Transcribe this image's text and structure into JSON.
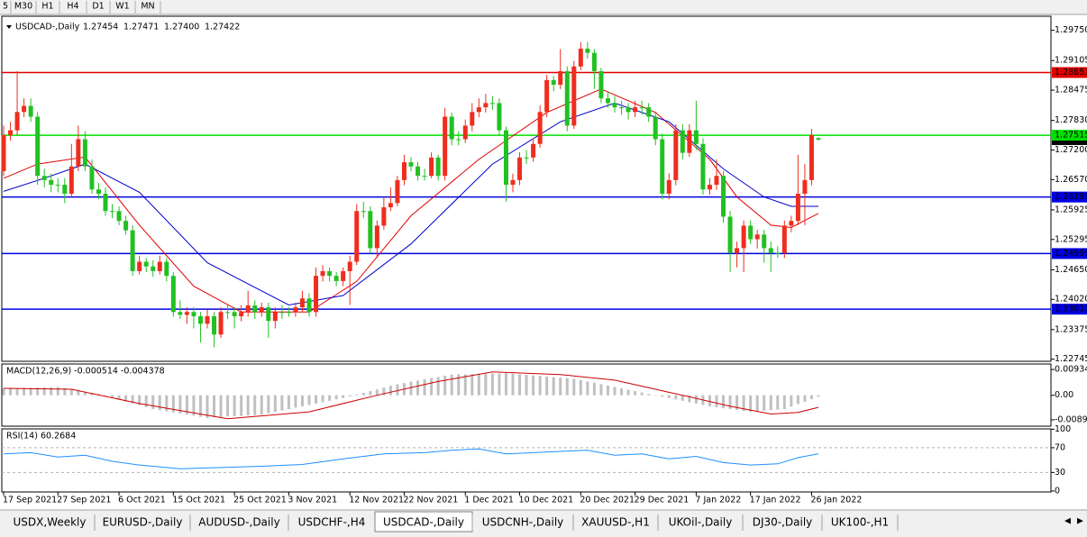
{
  "toolbar": {
    "timeframes": [
      "5",
      "M30",
      "H1",
      "H4",
      "D1",
      "W1",
      "MN"
    ]
  },
  "tabs": {
    "items": [
      "USDX,Weekly",
      "EURUSD-,Daily",
      "AUDUSD-,Daily",
      "USDCHF-,H4",
      "USDCAD-,Daily",
      "USDCNH-,Daily",
      "XAUUSD-,H1",
      "UKOil-,Daily",
      "DJ30-,Daily",
      "UK100-,H1"
    ],
    "active": 4
  },
  "chart_data": {
    "type": "candlestick",
    "title": "USDCAD-,Daily",
    "legend_ohlc": [
      "1.27454",
      "1.27471",
      "1.27400",
      "1.27422"
    ],
    "up_color": "#ef2d1e",
    "down_color": "#22c022",
    "ylim": [
      1.227,
      1.3005
    ],
    "yticks": [
      {
        "value": 1.2975,
        "label": "1.29750"
      },
      1.29105,
      1.28475,
      {
        "value": 1.2783,
        "label": "1.27830"
      },
      {
        "value": 1.272,
        "label": "1.27200"
      },
      {
        "value": 1.2657,
        "label": "1.26570"
      },
      1.25925,
      1.25295,
      {
        "value": 1.2465,
        "label": "1.24650"
      },
      {
        "value": 1.2402,
        "label": "1.24020"
      },
      1.23375,
      1.22745
    ],
    "xticks": [
      {
        "value": 0,
        "label": "17 Sep 2021"
      },
      {
        "value": 8,
        "label": "27 Sep 2021"
      },
      {
        "value": 17,
        "label": "6 Oct 2021"
      },
      {
        "value": 25,
        "label": "15 Oct 2021"
      },
      {
        "value": 34,
        "label": "25 Oct 2021"
      },
      {
        "value": 42,
        "label": "3 Nov 2021"
      },
      {
        "value": 51,
        "label": "12 Nov 2021"
      },
      {
        "value": 59,
        "label": "22 Nov 2021"
      },
      {
        "value": 68,
        "label": "1 Dec 2021"
      },
      {
        "value": 76,
        "label": "10 Dec 2021"
      },
      {
        "value": 85,
        "label": "20 Dec 2021"
      },
      {
        "value": 93,
        "label": "29 Dec 2021"
      },
      {
        "value": 102,
        "label": "7 Jan 2022"
      },
      {
        "value": 110,
        "label": "17 Jan 2022"
      },
      {
        "value": 119,
        "label": "26 Jan 2022"
      }
    ],
    "hlines": [
      {
        "value": 1.28851,
        "color": "#e00000"
      },
      {
        "value": 1.27515,
        "color": "#00e000"
      },
      {
        "value": 1.26199,
        "color": "#0000e0"
      },
      {
        "value": 1.24995,
        "color": "#0000e0"
      },
      {
        "value": 1.2381,
        "label": "1.23810",
        "color": "#0000e0"
      }
    ],
    "candles": [
      [
        1.2675,
        1.2772,
        1.2665,
        1.2752
      ],
      [
        1.2752,
        1.278,
        1.274,
        1.2762
      ],
      [
        1.2762,
        1.2888,
        1.2752,
        1.2801
      ],
      [
        1.2801,
        1.283,
        1.279,
        1.2814
      ],
      [
        1.2814,
        1.283,
        1.278,
        1.2791
      ],
      [
        1.2791,
        1.2801,
        1.2646,
        1.2665
      ],
      [
        1.2665,
        1.268,
        1.264,
        1.2656
      ],
      [
        1.2656,
        1.267,
        1.263,
        1.2646
      ],
      [
        1.2646,
        1.266,
        1.263,
        1.2646
      ],
      [
        1.2646,
        1.266,
        1.2607,
        1.2627
      ],
      [
        1.2627,
        1.2733,
        1.262,
        1.2685
      ],
      [
        1.2685,
        1.2772,
        1.2675,
        1.2743
      ],
      [
        1.2743,
        1.276,
        1.2675,
        1.2685
      ],
      [
        1.2685,
        1.27,
        1.2627,
        1.2636
      ],
      [
        1.2636,
        1.265,
        1.2615,
        1.2627
      ],
      [
        1.2627,
        1.264,
        1.258,
        1.259
      ],
      [
        1.259,
        1.2605,
        1.2575,
        1.259
      ],
      [
        1.259,
        1.26,
        1.256,
        1.2569
      ],
      [
        1.2569,
        1.258,
        1.254,
        1.2549
      ],
      [
        1.2549,
        1.256,
        1.2452,
        1.2462
      ],
      [
        1.2462,
        1.2495,
        1.2455,
        1.2482
      ],
      [
        1.2482,
        1.249,
        1.246,
        1.2472
      ],
      [
        1.2472,
        1.2485,
        1.245,
        1.2462
      ],
      [
        1.2462,
        1.2495,
        1.2455,
        1.2482
      ],
      [
        1.2482,
        1.249,
        1.244,
        1.2452
      ],
      [
        1.2452,
        1.246,
        1.2365,
        1.2375
      ],
      [
        1.2375,
        1.24,
        1.236,
        1.2369
      ],
      [
        1.2369,
        1.2385,
        1.235,
        1.2375
      ],
      [
        1.2375,
        1.2385,
        1.234,
        1.2366
      ],
      [
        1.2366,
        1.2375,
        1.231,
        1.235
      ],
      [
        1.235,
        1.238,
        1.234,
        1.2366
      ],
      [
        1.2366,
        1.2375,
        1.23,
        1.2327
      ],
      [
        1.2327,
        1.2385,
        1.232,
        1.2375
      ],
      [
        1.2375,
        1.239,
        1.236,
        1.2375
      ],
      [
        1.2375,
        1.2385,
        1.234,
        1.2366
      ],
      [
        1.2366,
        1.239,
        1.2355,
        1.2375
      ],
      [
        1.2375,
        1.242,
        1.2365,
        1.2389
      ],
      [
        1.2389,
        1.24,
        1.236,
        1.2375
      ],
      [
        1.2375,
        1.2395,
        1.2365,
        1.2385
      ],
      [
        1.2385,
        1.2395,
        1.232,
        1.2356
      ],
      [
        1.2356,
        1.2385,
        1.234,
        1.2375
      ],
      [
        1.2375,
        1.239,
        1.236,
        1.2375
      ],
      [
        1.2375,
        1.2385,
        1.2365,
        1.2375
      ],
      [
        1.2375,
        1.2395,
        1.2365,
        1.2385
      ],
      [
        1.2385,
        1.242,
        1.2375,
        1.2404
      ],
      [
        1.2404,
        1.2415,
        1.2365,
        1.2375
      ],
      [
        1.2375,
        1.247,
        1.2365,
        1.2452
      ],
      [
        1.2452,
        1.2475,
        1.244,
        1.2462
      ],
      [
        1.2462,
        1.247,
        1.244,
        1.2452
      ],
      [
        1.2452,
        1.246,
        1.243,
        1.2441
      ],
      [
        1.2441,
        1.247,
        1.243,
        1.2462
      ],
      [
        1.2462,
        1.2495,
        1.239,
        1.2482
      ],
      [
        1.2482,
        1.2605,
        1.2475,
        1.259
      ],
      [
        1.259,
        1.261,
        1.2575,
        1.259
      ],
      [
        1.259,
        1.26,
        1.25,
        1.2511
      ],
      [
        1.2511,
        1.257,
        1.249,
        1.2559
      ],
      [
        1.2559,
        1.262,
        1.255,
        1.2598
      ],
      [
        1.2598,
        1.264,
        1.259,
        1.2607
      ],
      [
        1.2607,
        1.2665,
        1.26,
        1.2656
      ],
      [
        1.2656,
        1.271,
        1.2645,
        1.2694
      ],
      [
        1.2694,
        1.2705,
        1.2675,
        1.2685
      ],
      [
        1.2685,
        1.2695,
        1.2655,
        1.2665
      ],
      [
        1.2665,
        1.268,
        1.2655,
        1.2665
      ],
      [
        1.2665,
        1.2715,
        1.266,
        1.2704
      ],
      [
        1.2704,
        1.271,
        1.2655,
        1.2665
      ],
      [
        1.2665,
        1.281,
        1.2655,
        1.2791
      ],
      [
        1.2791,
        1.28,
        1.273,
        1.2743
      ],
      [
        1.2743,
        1.276,
        1.273,
        1.2743
      ],
      [
        1.2743,
        1.2785,
        1.2735,
        1.2772
      ],
      [
        1.2772,
        1.282,
        1.276,
        1.2801
      ],
      [
        1.2801,
        1.283,
        1.279,
        1.2811
      ],
      [
        1.2811,
        1.284,
        1.28,
        1.282
      ],
      [
        1.282,
        1.2835,
        1.2805,
        1.282
      ],
      [
        1.282,
        1.283,
        1.275,
        1.2762
      ],
      [
        1.2762,
        1.277,
        1.261,
        1.2646
      ],
      [
        1.2646,
        1.267,
        1.263,
        1.2656
      ],
      [
        1.2656,
        1.2715,
        1.2645,
        1.2704
      ],
      [
        1.2704,
        1.272,
        1.269,
        1.2704
      ],
      [
        1.2704,
        1.2745,
        1.2695,
        1.2733
      ],
      [
        1.2733,
        1.2815,
        1.2725,
        1.2801
      ],
      [
        1.2801,
        1.288,
        1.279,
        1.2869
      ],
      [
        1.2869,
        1.2878,
        1.2845,
        1.2859
      ],
      [
        1.2859,
        1.2935,
        1.285,
        1.2888
      ],
      [
        1.2888,
        1.2898,
        1.276,
        1.2772
      ],
      [
        1.2772,
        1.291,
        1.2765,
        1.2898
      ],
      [
        1.2898,
        1.295,
        1.289,
        1.2936
      ],
      [
        1.2936,
        1.295,
        1.2915,
        1.2927
      ],
      [
        1.2927,
        1.2935,
        1.285,
        1.2888
      ],
      [
        1.2888,
        1.2895,
        1.282,
        1.283
      ],
      [
        1.283,
        1.2845,
        1.281,
        1.282
      ],
      [
        1.282,
        1.2835,
        1.28,
        1.2811
      ],
      [
        1.2811,
        1.2825,
        1.2795,
        1.2811
      ],
      [
        1.2811,
        1.282,
        1.2785,
        1.2801
      ],
      [
        1.2801,
        1.2825,
        1.279,
        1.2811
      ],
      [
        1.2811,
        1.2825,
        1.2795,
        1.2811
      ],
      [
        1.2811,
        1.282,
        1.278,
        1.2791
      ],
      [
        1.2791,
        1.28,
        1.273,
        1.2743
      ],
      [
        1.2743,
        1.2755,
        1.2615,
        1.2627
      ],
      [
        1.2627,
        1.267,
        1.2615,
        1.2656
      ],
      [
        1.2656,
        1.2775,
        1.2645,
        1.2762
      ],
      [
        1.2762,
        1.2775,
        1.27,
        1.2714
      ],
      [
        1.2714,
        1.2775,
        1.2705,
        1.2762
      ],
      [
        1.2762,
        1.2825,
        1.272,
        1.2733
      ],
      [
        1.2733,
        1.2745,
        1.2625,
        1.2636
      ],
      [
        1.2636,
        1.266,
        1.2625,
        1.2646
      ],
      [
        1.2646,
        1.27,
        1.2635,
        1.2665
      ],
      [
        1.2665,
        1.2675,
        1.2565,
        1.2578
      ],
      [
        1.2578,
        1.259,
        1.246,
        1.2501
      ],
      [
        1.2501,
        1.2525,
        1.247,
        1.2511
      ],
      [
        1.2511,
        1.257,
        1.246,
        1.2559
      ],
      [
        1.2559,
        1.257,
        1.252,
        1.253
      ],
      [
        1.253,
        1.255,
        1.251,
        1.254
      ],
      [
        1.254,
        1.255,
        1.248,
        1.2511
      ],
      [
        1.2511,
        1.2525,
        1.246,
        1.2501
      ],
      [
        1.2501,
        1.2515,
        1.249,
        1.2501
      ],
      [
        1.2501,
        1.257,
        1.249,
        1.2559
      ],
      [
        1.2559,
        1.258,
        1.2545,
        1.2569
      ],
      [
        1.2569,
        1.271,
        1.256,
        1.2627
      ],
      [
        1.2627,
        1.269,
        1.256,
        1.2656
      ],
      [
        1.2656,
        1.2765,
        1.2645,
        1.2752
      ],
      [
        1.27454,
        1.27471,
        1.274,
        1.27422
      ]
    ],
    "lines": [
      {
        "color": "#e00000",
        "x": [
          0,
          5,
          12,
          20,
          28,
          35,
          45,
          52,
          60,
          70,
          80,
          88,
          96,
          104,
          108,
          113,
          116,
          120
        ],
        "values": [
          1.266,
          1.269,
          1.2705,
          1.256,
          1.243,
          1.2375,
          1.2375,
          1.244,
          1.258,
          1.27,
          1.28,
          1.285,
          1.28,
          1.27,
          1.262,
          1.256,
          1.2555,
          1.2585
        ]
      },
      {
        "color": "#0000c8",
        "x": [
          0,
          6,
          12,
          20,
          30,
          42,
          50,
          60,
          72,
          82,
          90,
          98,
          106,
          112,
          116,
          120
        ],
        "values": [
          1.2632,
          1.266,
          1.269,
          1.263,
          1.248,
          1.239,
          1.241,
          1.252,
          1.269,
          1.278,
          1.282,
          1.278,
          1.268,
          1.262,
          1.26,
          1.26
        ]
      }
    ],
    "macd": {
      "title": "MACD(12,26,9) -0.000514 -0.004378",
      "ylim": [
        -0.0112,
        0.01133
      ],
      "yticks": [
        0.009345,
        {
          "value": 0,
          "label": "0.00"
        },
        -0.008905
      ],
      "histogram": {
        "color": "#c0c0c0",
        "values": [
          0.0025,
          0.0026,
          0.0026,
          0.0027,
          0.0027,
          0.0028,
          0.0029,
          0.0029,
          0.003,
          0.0026,
          0.0022,
          0.0018,
          0.0013,
          0.0009,
          0.0005,
          -0.0002,
          -0.0009,
          -0.0015,
          -0.0022,
          -0.0029,
          -0.0036,
          -0.0043,
          -0.005,
          -0.0054,
          -0.0058,
          -0.0062,
          -0.0066,
          -0.007,
          -0.0074,
          -0.0078,
          -0.0082,
          -0.008,
          -0.0079,
          -0.0077,
          -0.0076,
          -0.0075,
          -0.0073,
          -0.0072,
          -0.007,
          -0.0065,
          -0.006,
          -0.0055,
          -0.005,
          -0.0045,
          -0.004,
          -0.0035,
          -0.003,
          -0.0025,
          -0.002,
          -0.0015,
          -0.001,
          -0.0004,
          0.0003,
          0.0009,
          0.0015,
          0.0021,
          0.0028,
          0.0034,
          0.004,
          0.0044,
          0.0049,
          0.0053,
          0.0058,
          0.0062,
          0.0066,
          0.0071,
          0.0075,
          0.0076,
          0.0076,
          0.0077,
          0.0078,
          0.0078,
          0.0079,
          0.0079,
          0.008,
          0.0078,
          0.0076,
          0.0074,
          0.0072,
          0.007,
          0.0068,
          0.0066,
          0.0064,
          0.0062,
          0.006,
          0.0055,
          0.005,
          0.0045,
          0.004,
          0.0035,
          0.003,
          0.0025,
          0.002,
          0.0015,
          0.001,
          0.0005,
          0.0,
          -0.0005,
          -0.001,
          -0.0015,
          -0.002,
          -0.0025,
          -0.003,
          -0.0035,
          -0.004,
          -0.0043,
          -0.0047,
          -0.005,
          -0.0053,
          -0.0057,
          -0.006,
          -0.0058,
          -0.0056,
          -0.0054,
          -0.0052,
          -0.005,
          -0.0041,
          -0.0032,
          -0.0023,
          -0.0014,
          -0.000514
        ]
      },
      "signal": {
        "color": "#cc0000",
        "x": [
          0,
          10,
          20,
          33,
          45,
          55,
          64,
          72,
          82,
          90,
          100,
          107,
          113,
          117,
          120
        ],
        "values": [
          0.0025,
          0.0022,
          -0.003,
          -0.0085,
          -0.006,
          0.0,
          0.005,
          0.0085,
          0.0075,
          0.0055,
          0.0,
          -0.004,
          -0.0068,
          -0.0062,
          -0.004378
        ]
      }
    },
    "rsi": {
      "title": "RSI(14) 60.2684",
      "ylim": [
        -1.5,
        100.5
      ],
      "yticks": [
        100,
        70,
        30,
        0
      ],
      "levels": [
        70,
        30
      ],
      "line": {
        "color": "#1e90ff",
        "x": [
          0,
          4,
          8,
          12,
          16,
          20,
          26,
          32,
          38,
          44,
          50,
          56,
          62,
          66,
          70,
          74,
          78,
          82,
          86,
          90,
          94,
          98,
          102,
          106,
          110,
          114,
          117,
          120
        ],
        "values": [
          60,
          62,
          55,
          58,
          48,
          42,
          36,
          38,
          40,
          43,
          52,
          60,
          62,
          66,
          68,
          60,
          62,
          64,
          66,
          58,
          60,
          52,
          56,
          46,
          42,
          44,
          54,
          60.2684
        ]
      }
    }
  }
}
